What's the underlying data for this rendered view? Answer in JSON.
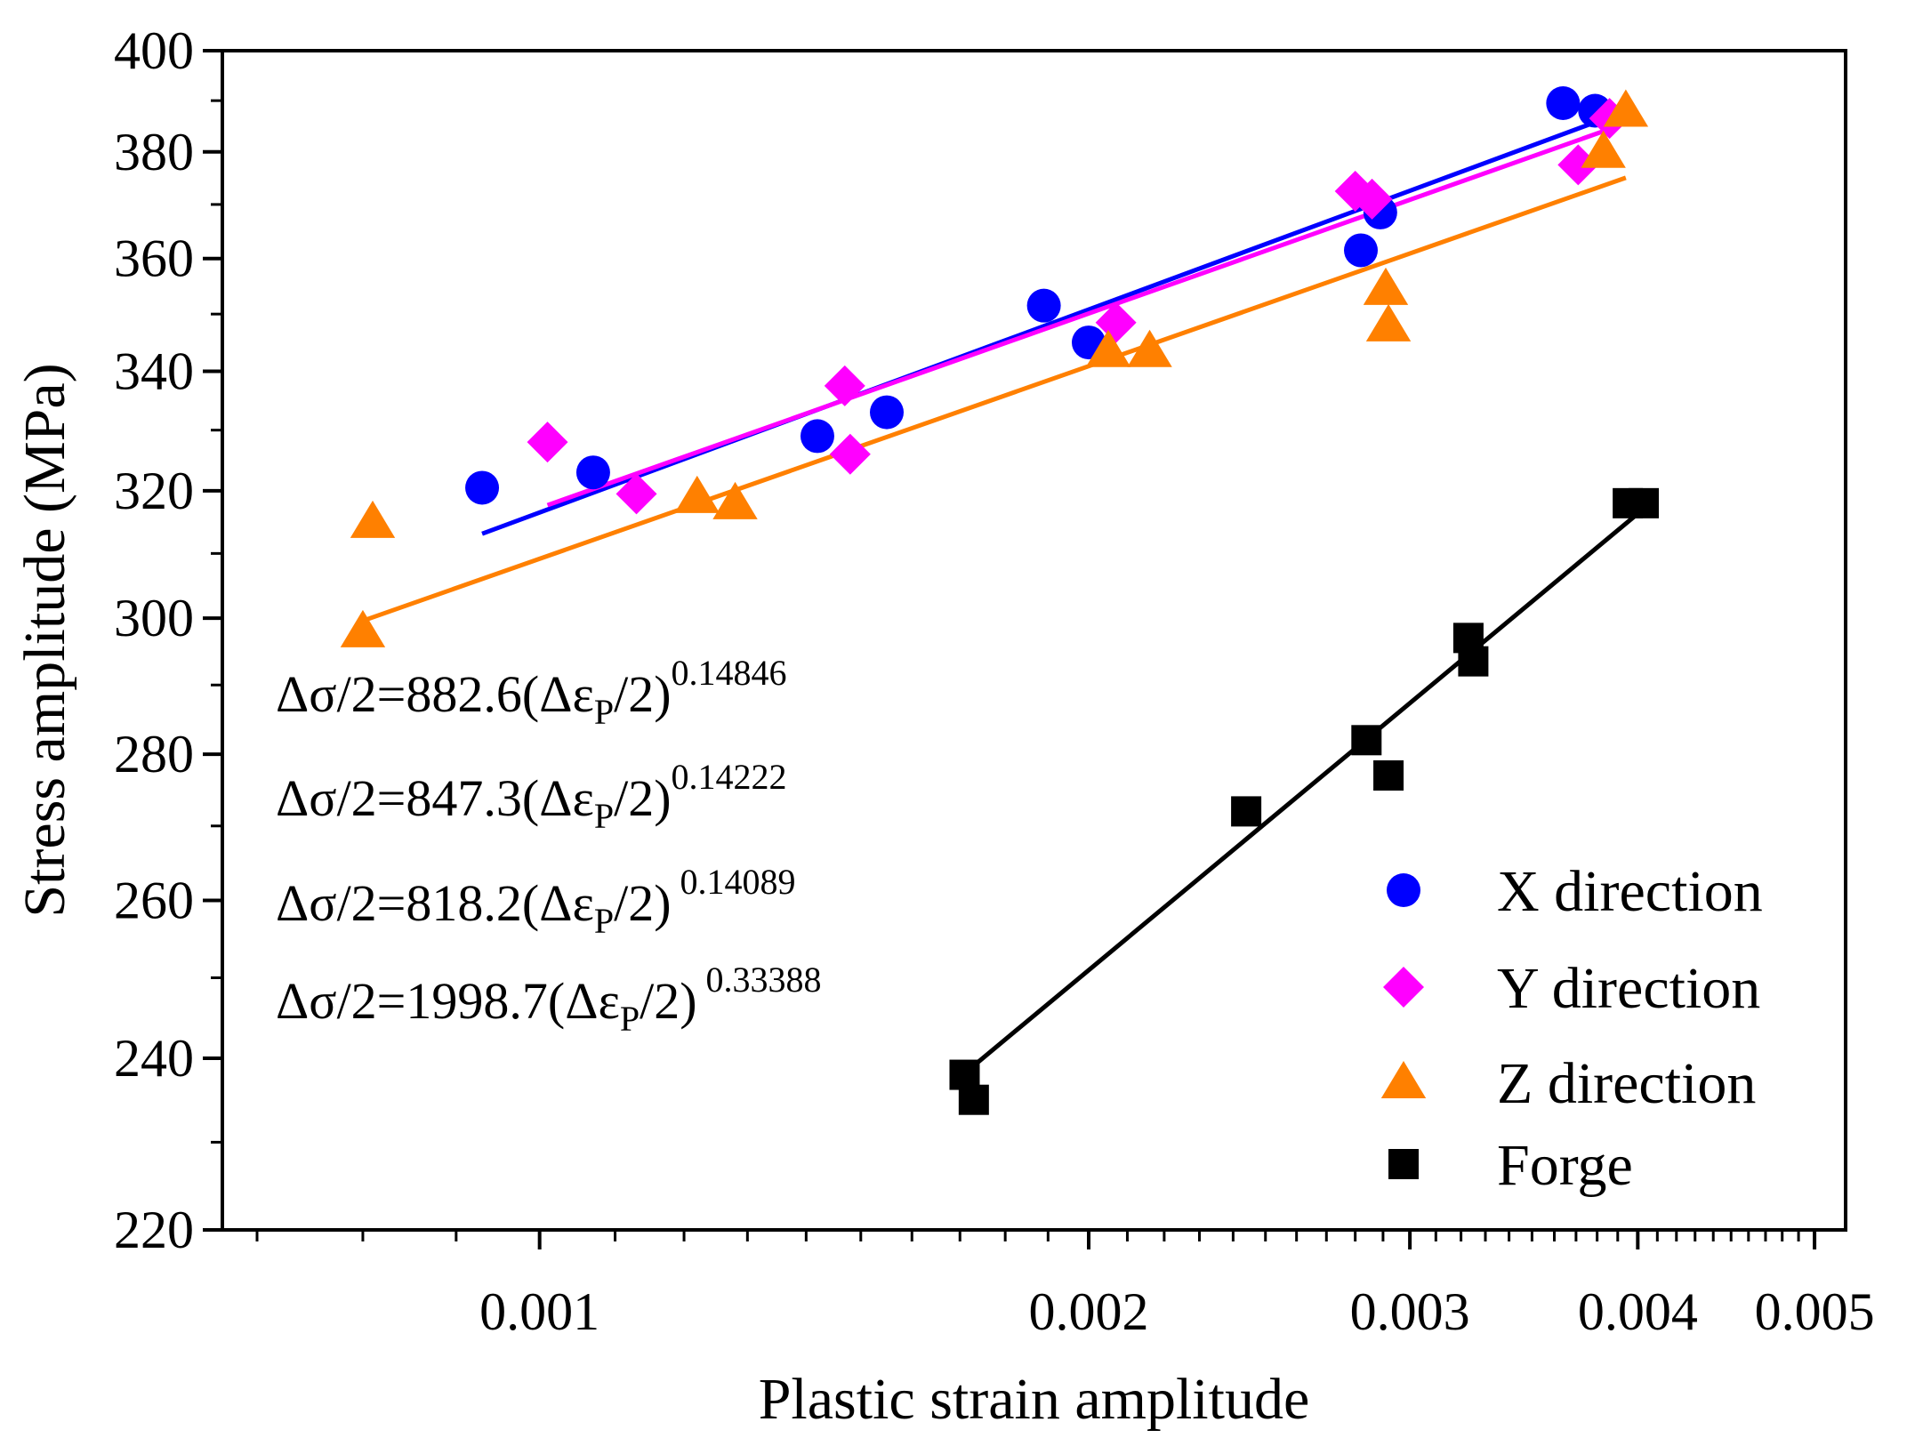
{
  "chart_data": {
    "type": "scatter",
    "xscale": "log",
    "yscale": "log",
    "xlabel": "Plastic strain amplitude",
    "ylabel": "Stress amplitude (MPa)",
    "xlim": [
      0.00067,
      0.0052
    ],
    "ylim": [
      220,
      400
    ],
    "xticks": [
      {
        "value": 0.001,
        "label": "0.001"
      },
      {
        "value": 0.002,
        "label": "0.002"
      },
      {
        "value": 0.003,
        "label": "0.003"
      },
      {
        "value": 0.004,
        "label": "0.004"
      },
      {
        "value": 0.005,
        "label": "0.005"
      }
    ],
    "xminor": [
      0.0007,
      0.0008,
      0.0009,
      0.0011,
      0.0012,
      0.0013,
      0.0014,
      0.0015,
      0.0016,
      0.0017,
      0.0018,
      0.0019,
      0.0021,
      0.0022,
      0.0023,
      0.0024,
      0.0025,
      0.0026,
      0.0027,
      0.0028,
      0.0029,
      0.0031,
      0.0032,
      0.0033,
      0.0034,
      0.0035,
      0.0036,
      0.0037,
      0.0038,
      0.0039,
      0.0041,
      0.0042,
      0.0043,
      0.0044,
      0.0045,
      0.0046,
      0.0047,
      0.0048,
      0.0049
    ],
    "yticks": [
      {
        "value": 220,
        "label": "220"
      },
      {
        "value": 240,
        "label": "240"
      },
      {
        "value": 260,
        "label": "260"
      },
      {
        "value": 280,
        "label": "280"
      },
      {
        "value": 300,
        "label": "300"
      },
      {
        "value": 320,
        "label": "320"
      },
      {
        "value": 340,
        "label": "340"
      },
      {
        "value": 360,
        "label": "360"
      },
      {
        "value": 380,
        "label": "380"
      },
      {
        "value": 400,
        "label": "400"
      }
    ],
    "series": [
      {
        "name": "X direction",
        "marker": "circle",
        "color": "#0000ff",
        "points": [
          [
            0.00093,
            320.5
          ],
          [
            0.00107,
            323
          ],
          [
            0.00142,
            329
          ],
          [
            0.00155,
            333
          ],
          [
            0.00189,
            351.5
          ],
          [
            0.002,
            345
          ],
          [
            0.00282,
            361.5
          ],
          [
            0.00289,
            368.5
          ],
          [
            0.00364,
            389.5
          ],
          [
            0.00379,
            388
          ]
        ],
        "fit": {
          "coef": 882.6,
          "exp": 0.14846,
          "x_range": [
            0.00093,
            0.00385
          ]
        }
      },
      {
        "name": "Y direction",
        "marker": "diamond",
        "color": "#ff00ff",
        "points": [
          [
            0.00101,
            328
          ],
          [
            0.00113,
            319.5
          ],
          [
            0.00147,
            337.5
          ],
          [
            0.00148,
            326
          ],
          [
            0.00207,
            348.5
          ],
          [
            0.0028,
            372.5
          ],
          [
            0.00286,
            371
          ],
          [
            0.00371,
            377.5
          ],
          [
            0.00386,
            386.5
          ]
        ],
        "fit": {
          "coef": 847.3,
          "exp": 0.14222,
          "x_range": [
            0.00101,
            0.0039
          ]
        }
      },
      {
        "name": "Z direction",
        "marker": "triangle",
        "color": "#ff8000",
        "points": [
          [
            0.00081,
            315
          ],
          [
            0.0008,
            298
          ],
          [
            0.00122,
            319
          ],
          [
            0.00128,
            318
          ],
          [
            0.00205,
            343.5
          ],
          [
            0.00216,
            343.5
          ],
          [
            0.00291,
            354.5
          ],
          [
            0.00292,
            348
          ],
          [
            0.00383,
            380
          ],
          [
            0.00394,
            388
          ]
        ],
        "fit": {
          "coef": 818.2,
          "exp": 0.14089,
          "x_range": [
            0.0008,
            0.00394
          ]
        }
      },
      {
        "name": "Forge",
        "marker": "square",
        "color": "#000000",
        "points": [
          [
            0.00171,
            238
          ],
          [
            0.00173,
            235
          ],
          [
            0.00244,
            272
          ],
          [
            0.00284,
            282
          ],
          [
            0.00292,
            277
          ],
          [
            0.00323,
            297
          ],
          [
            0.00325,
            293.5
          ],
          [
            0.00395,
            318
          ],
          [
            0.00403,
            318
          ]
        ],
        "fit": {
          "coef": 1998.7,
          "exp": 0.33388,
          "x_range": [
            0.00171,
            0.004
          ]
        }
      }
    ],
    "equations": [
      {
        "prefix": "Δσ/2=882.6(Δε",
        "sub": "P",
        "suffix": "/2)",
        "sup": "0.14846",
        "color": "#0000ff"
      },
      {
        "prefix": "Δσ/2=847.3(Δε",
        "sub": "P",
        "suffix": "/2)",
        "sup": "0.14222",
        "color": "#ff00ff"
      },
      {
        "prefix": "Δσ/2=818.2(Δε",
        "sub": "P",
        "suffix": "/2)",
        "sup": " 0.14089",
        "color": "#ff8000"
      },
      {
        "prefix": "Δσ/2=1998.7(Δε",
        "sub": "P",
        "suffix": "/2)",
        "sup": " 0.33388",
        "color": "#000000"
      }
    ],
    "legend": {
      "position": "bottom-right",
      "entries": [
        "X direction",
        "Y direction",
        "Z direction",
        "Forge"
      ]
    }
  }
}
